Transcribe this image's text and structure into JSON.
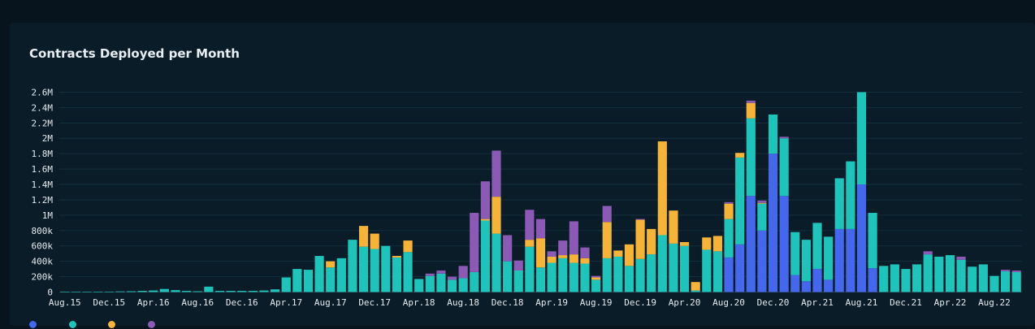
{
  "chart_data": {
    "type": "bar",
    "stacked": true,
    "title": "Contracts Deployed per Month",
    "xlabel": "",
    "ylabel": "",
    "ylim": [
      0,
      2700000
    ],
    "grid": true,
    "legend_position": "bottom-left",
    "y_ticks": [
      "0",
      "200k",
      "400k",
      "600k",
      "800k",
      "1M",
      "1.2M",
      "1.4M",
      "1.6M",
      "1.8M",
      "2M",
      "2.2M",
      "2.4M",
      "2.6M"
    ],
    "x_tick_labels": [
      "Aug.15",
      "Dec.15",
      "Apr.16",
      "Aug.16",
      "Dec.16",
      "Apr.17",
      "Aug.17",
      "Dec.17",
      "Apr.18",
      "Aug.18",
      "Dec.18",
      "Apr.19",
      "Aug.19",
      "Dec.19",
      "Apr.20",
      "Aug.20",
      "Dec.20",
      "Apr.21",
      "Aug.21",
      "Dec.21",
      "Apr.22",
      "Aug.22"
    ],
    "x_tick_every": 4,
    "categories": [
      "2015-08",
      "2015-09",
      "2015-10",
      "2015-11",
      "2015-12",
      "2016-01",
      "2016-02",
      "2016-03",
      "2016-04",
      "2016-05",
      "2016-06",
      "2016-07",
      "2016-08",
      "2016-09",
      "2016-10",
      "2016-11",
      "2016-12",
      "2017-01",
      "2017-02",
      "2017-03",
      "2017-04",
      "2017-05",
      "2017-06",
      "2017-07",
      "2017-08",
      "2017-09",
      "2017-10",
      "2017-11",
      "2017-12",
      "2018-01",
      "2018-02",
      "2018-03",
      "2018-04",
      "2018-05",
      "2018-06",
      "2018-07",
      "2018-08",
      "2018-09",
      "2018-10",
      "2018-11",
      "2018-12",
      "2019-01",
      "2019-02",
      "2019-03",
      "2019-04",
      "2019-05",
      "2019-06",
      "2019-07",
      "2019-08",
      "2019-09",
      "2019-10",
      "2019-11",
      "2019-12",
      "2020-01",
      "2020-02",
      "2020-03",
      "2020-04",
      "2020-05",
      "2020-06",
      "2020-07",
      "2020-08",
      "2020-09",
      "2020-10",
      "2020-11",
      "2020-12",
      "2021-01",
      "2021-02",
      "2021-03",
      "2021-04",
      "2021-05",
      "2021-06",
      "2021-07",
      "2021-08",
      "2021-09",
      "2021-10",
      "2021-11",
      "2021-12",
      "2022-01",
      "2022-02",
      "2022-03",
      "2022-04",
      "2022-05",
      "2022-06",
      "2022-07",
      "2022-08",
      "2022-09",
      "2022-10"
    ],
    "series": [
      {
        "color": "#4567ec",
        "values": [
          0,
          0,
          0,
          0,
          0,
          0,
          0,
          0,
          0,
          0,
          0,
          0,
          0,
          0,
          0,
          0,
          0,
          0,
          0,
          0,
          0,
          0,
          0,
          0,
          0,
          0,
          0,
          0,
          0,
          0,
          0,
          0,
          0,
          0,
          0,
          0,
          0,
          0,
          0,
          0,
          0,
          0,
          0,
          0,
          0,
          0,
          0,
          0,
          0,
          0,
          0,
          0,
          0,
          0,
          0,
          0,
          0,
          0,
          0,
          0,
          450000,
          620000,
          1250000,
          800000,
          1800000,
          1250000,
          220000,
          140000,
          300000,
          160000,
          820000,
          820000,
          1400000,
          310000,
          0,
          0,
          0,
          0,
          0,
          0,
          0,
          0,
          0,
          0,
          0,
          0,
          0
        ]
      },
      {
        "color": "#1fc3b9",
        "values": [
          2000,
          2000,
          3000,
          4000,
          5000,
          8000,
          10000,
          15000,
          20000,
          40000,
          25000,
          15000,
          10000,
          70000,
          15000,
          15000,
          15000,
          15000,
          20000,
          35000,
          190000,
          300000,
          290000,
          470000,
          320000,
          440000,
          680000,
          590000,
          560000,
          600000,
          450000,
          520000,
          170000,
          210000,
          240000,
          160000,
          180000,
          260000,
          930000,
          760000,
          400000,
          280000,
          590000,
          320000,
          380000,
          440000,
          380000,
          370000,
          160000,
          440000,
          460000,
          340000,
          430000,
          490000,
          740000,
          630000,
          600000,
          20000,
          550000,
          530000,
          500000,
          1130000,
          1010000,
          350000,
          510000,
          750000,
          560000,
          540000,
          600000,
          560000,
          660000,
          880000,
          1200000,
          720000,
          340000,
          360000,
          300000,
          360000,
          490000,
          460000,
          480000,
          420000,
          330000,
          360000,
          210000,
          270000,
          260000
        ]
      },
      {
        "color": "#f5b33a",
        "values": [
          0,
          0,
          0,
          0,
          0,
          0,
          0,
          0,
          0,
          0,
          0,
          0,
          0,
          0,
          0,
          0,
          0,
          0,
          0,
          0,
          0,
          0,
          0,
          0,
          80000,
          0,
          0,
          270000,
          200000,
          0,
          20000,
          150000,
          0,
          0,
          0,
          0,
          0,
          0,
          20000,
          480000,
          0,
          0,
          90000,
          380000,
          80000,
          40000,
          110000,
          70000,
          30000,
          470000,
          80000,
          280000,
          510000,
          330000,
          1220000,
          430000,
          50000,
          110000,
          160000,
          200000,
          200000,
          60000,
          200000,
          10000,
          0,
          0,
          0,
          0,
          0,
          0,
          0,
          0,
          0,
          0,
          0,
          0,
          0,
          0,
          0,
          0,
          0,
          0,
          0,
          0,
          0,
          0,
          0
        ]
      },
      {
        "color": "#8b5ab5",
        "values": [
          0,
          0,
          0,
          0,
          0,
          0,
          0,
          0,
          0,
          0,
          0,
          0,
          0,
          0,
          0,
          0,
          0,
          0,
          0,
          0,
          0,
          0,
          0,
          0,
          0,
          0,
          0,
          0,
          0,
          0,
          0,
          0,
          0,
          30000,
          40000,
          40000,
          160000,
          770000,
          490000,
          600000,
          340000,
          130000,
          390000,
          250000,
          70000,
          190000,
          430000,
          140000,
          20000,
          210000,
          0,
          0,
          10000,
          0,
          0,
          0,
          0,
          0,
          0,
          0,
          20000,
          0,
          30000,
          30000,
          0,
          20000,
          0,
          0,
          0,
          0,
          0,
          0,
          0,
          0,
          0,
          0,
          0,
          0,
          40000,
          0,
          0,
          40000,
          0,
          0,
          0,
          20000,
          20000
        ]
      }
    ]
  }
}
